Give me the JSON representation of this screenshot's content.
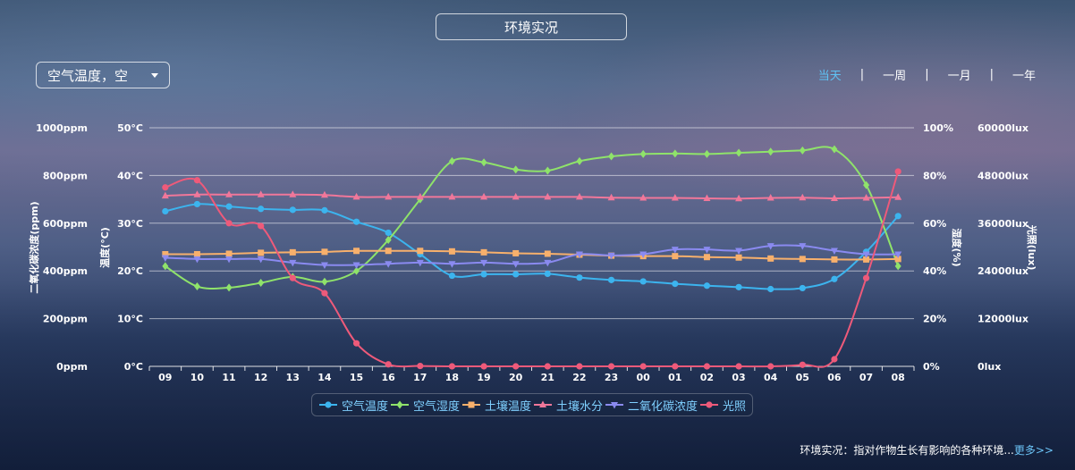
{
  "header": {
    "title": "环境实况"
  },
  "selector": {
    "value": "空气温度，空"
  },
  "range_tabs": [
    {
      "label": "当天",
      "active": true
    },
    {
      "label": "一周",
      "active": false
    },
    {
      "label": "一月",
      "active": false
    },
    {
      "label": "一年",
      "active": false
    }
  ],
  "range_separator": "|",
  "footer": {
    "text": "环境实况：指对作物生长有影响的各种环境...",
    "more": "更多>>"
  },
  "chart_data": {
    "type": "line",
    "categories": [
      "09",
      "10",
      "11",
      "12",
      "13",
      "14",
      "15",
      "16",
      "17",
      "18",
      "19",
      "20",
      "21",
      "22",
      "23",
      "00",
      "01",
      "02",
      "03",
      "04",
      "05",
      "06",
      "07",
      "08"
    ],
    "grid": true,
    "legend_position": "bottom-center",
    "axes": {
      "co2": {
        "label": "二氧化碳浓度(ppm)",
        "range": [
          0,
          1000
        ],
        "ticks": [
          "0ppm",
          "200ppm",
          "400ppm",
          "600ppm",
          "800ppm",
          "1000ppm"
        ]
      },
      "temp": {
        "label": "温度(°C)",
        "range": [
          0,
          50
        ],
        "ticks": [
          "0°C",
          "10°C",
          "20°C",
          "30°C",
          "40°C",
          "50°C"
        ]
      },
      "humidity": {
        "label": "湿度(%)",
        "range": [
          0,
          100
        ],
        "ticks": [
          "0%",
          "20%",
          "40%",
          "60%",
          "80%",
          "100%"
        ]
      },
      "light": {
        "label": "光照(lux)",
        "range": [
          0,
          60000
        ],
        "ticks": [
          "0lux",
          "12000lux",
          "24000lux",
          "36000lux",
          "48000lux",
          "60000lux"
        ]
      }
    },
    "series": [
      {
        "name": "空气温度",
        "axis": "temp",
        "color": "#3cb4ee",
        "marker": "circle",
        "values": [
          32.5,
          34,
          33.5,
          33,
          32.8,
          32.7,
          30.3,
          28,
          23.5,
          19,
          19.3,
          19.3,
          19.4,
          18.6,
          18.1,
          17.8,
          17.3,
          16.9,
          16.6,
          16.2,
          16.4,
          18.3,
          24,
          31.5
        ]
      },
      {
        "name": "空气湿度",
        "axis": "humidity",
        "color": "#8fe36a",
        "marker": "diamond",
        "values": [
          42,
          33.5,
          33,
          35,
          37.5,
          35.5,
          40,
          53,
          70,
          86,
          85.5,
          82.5,
          82,
          86,
          88,
          89,
          89.2,
          89,
          89.5,
          90,
          90.5,
          91,
          76,
          42
        ]
      },
      {
        "name": "土壤温度",
        "axis": "temp",
        "color": "#f7b06c",
        "marker": "square",
        "values": [
          23.5,
          23.5,
          23.6,
          23.8,
          23.9,
          24,
          24.2,
          24.2,
          24.2,
          24.1,
          23.9,
          23.7,
          23.6,
          23.4,
          23.2,
          23.1,
          23.1,
          22.9,
          22.8,
          22.6,
          22.5,
          22.4,
          22.4,
          22.5
        ]
      },
      {
        "name": "土壤水分",
        "axis": "humidity",
        "color": "#f0779a",
        "marker": "triangle",
        "values": [
          71.5,
          72,
          72,
          72,
          72,
          71.8,
          71,
          71,
          71,
          71,
          71,
          71,
          71,
          71,
          70.7,
          70.6,
          70.6,
          70.4,
          70.3,
          70.6,
          70.7,
          70.4,
          70.6,
          70.9
        ]
      },
      {
        "name": "二氧化碳浓度",
        "axis": "co2",
        "color": "#8a8af0",
        "marker": "triangle-down",
        "values": [
          455,
          450,
          450,
          450,
          435,
          425,
          425,
          430,
          435,
          430,
          435,
          430,
          435,
          470,
          465,
          470,
          490,
          490,
          485,
          505,
          505,
          485,
          470,
          470
        ]
      },
      {
        "name": "光照",
        "axis": "light",
        "color": "#ee5a7a",
        "marker": "circle",
        "values": [
          45000,
          46800,
          36000,
          35300,
          22200,
          18400,
          5800,
          500,
          100,
          0,
          0,
          0,
          0,
          0,
          0,
          0,
          0,
          0,
          0,
          0,
          400,
          1800,
          22200,
          49000
        ]
      }
    ]
  }
}
